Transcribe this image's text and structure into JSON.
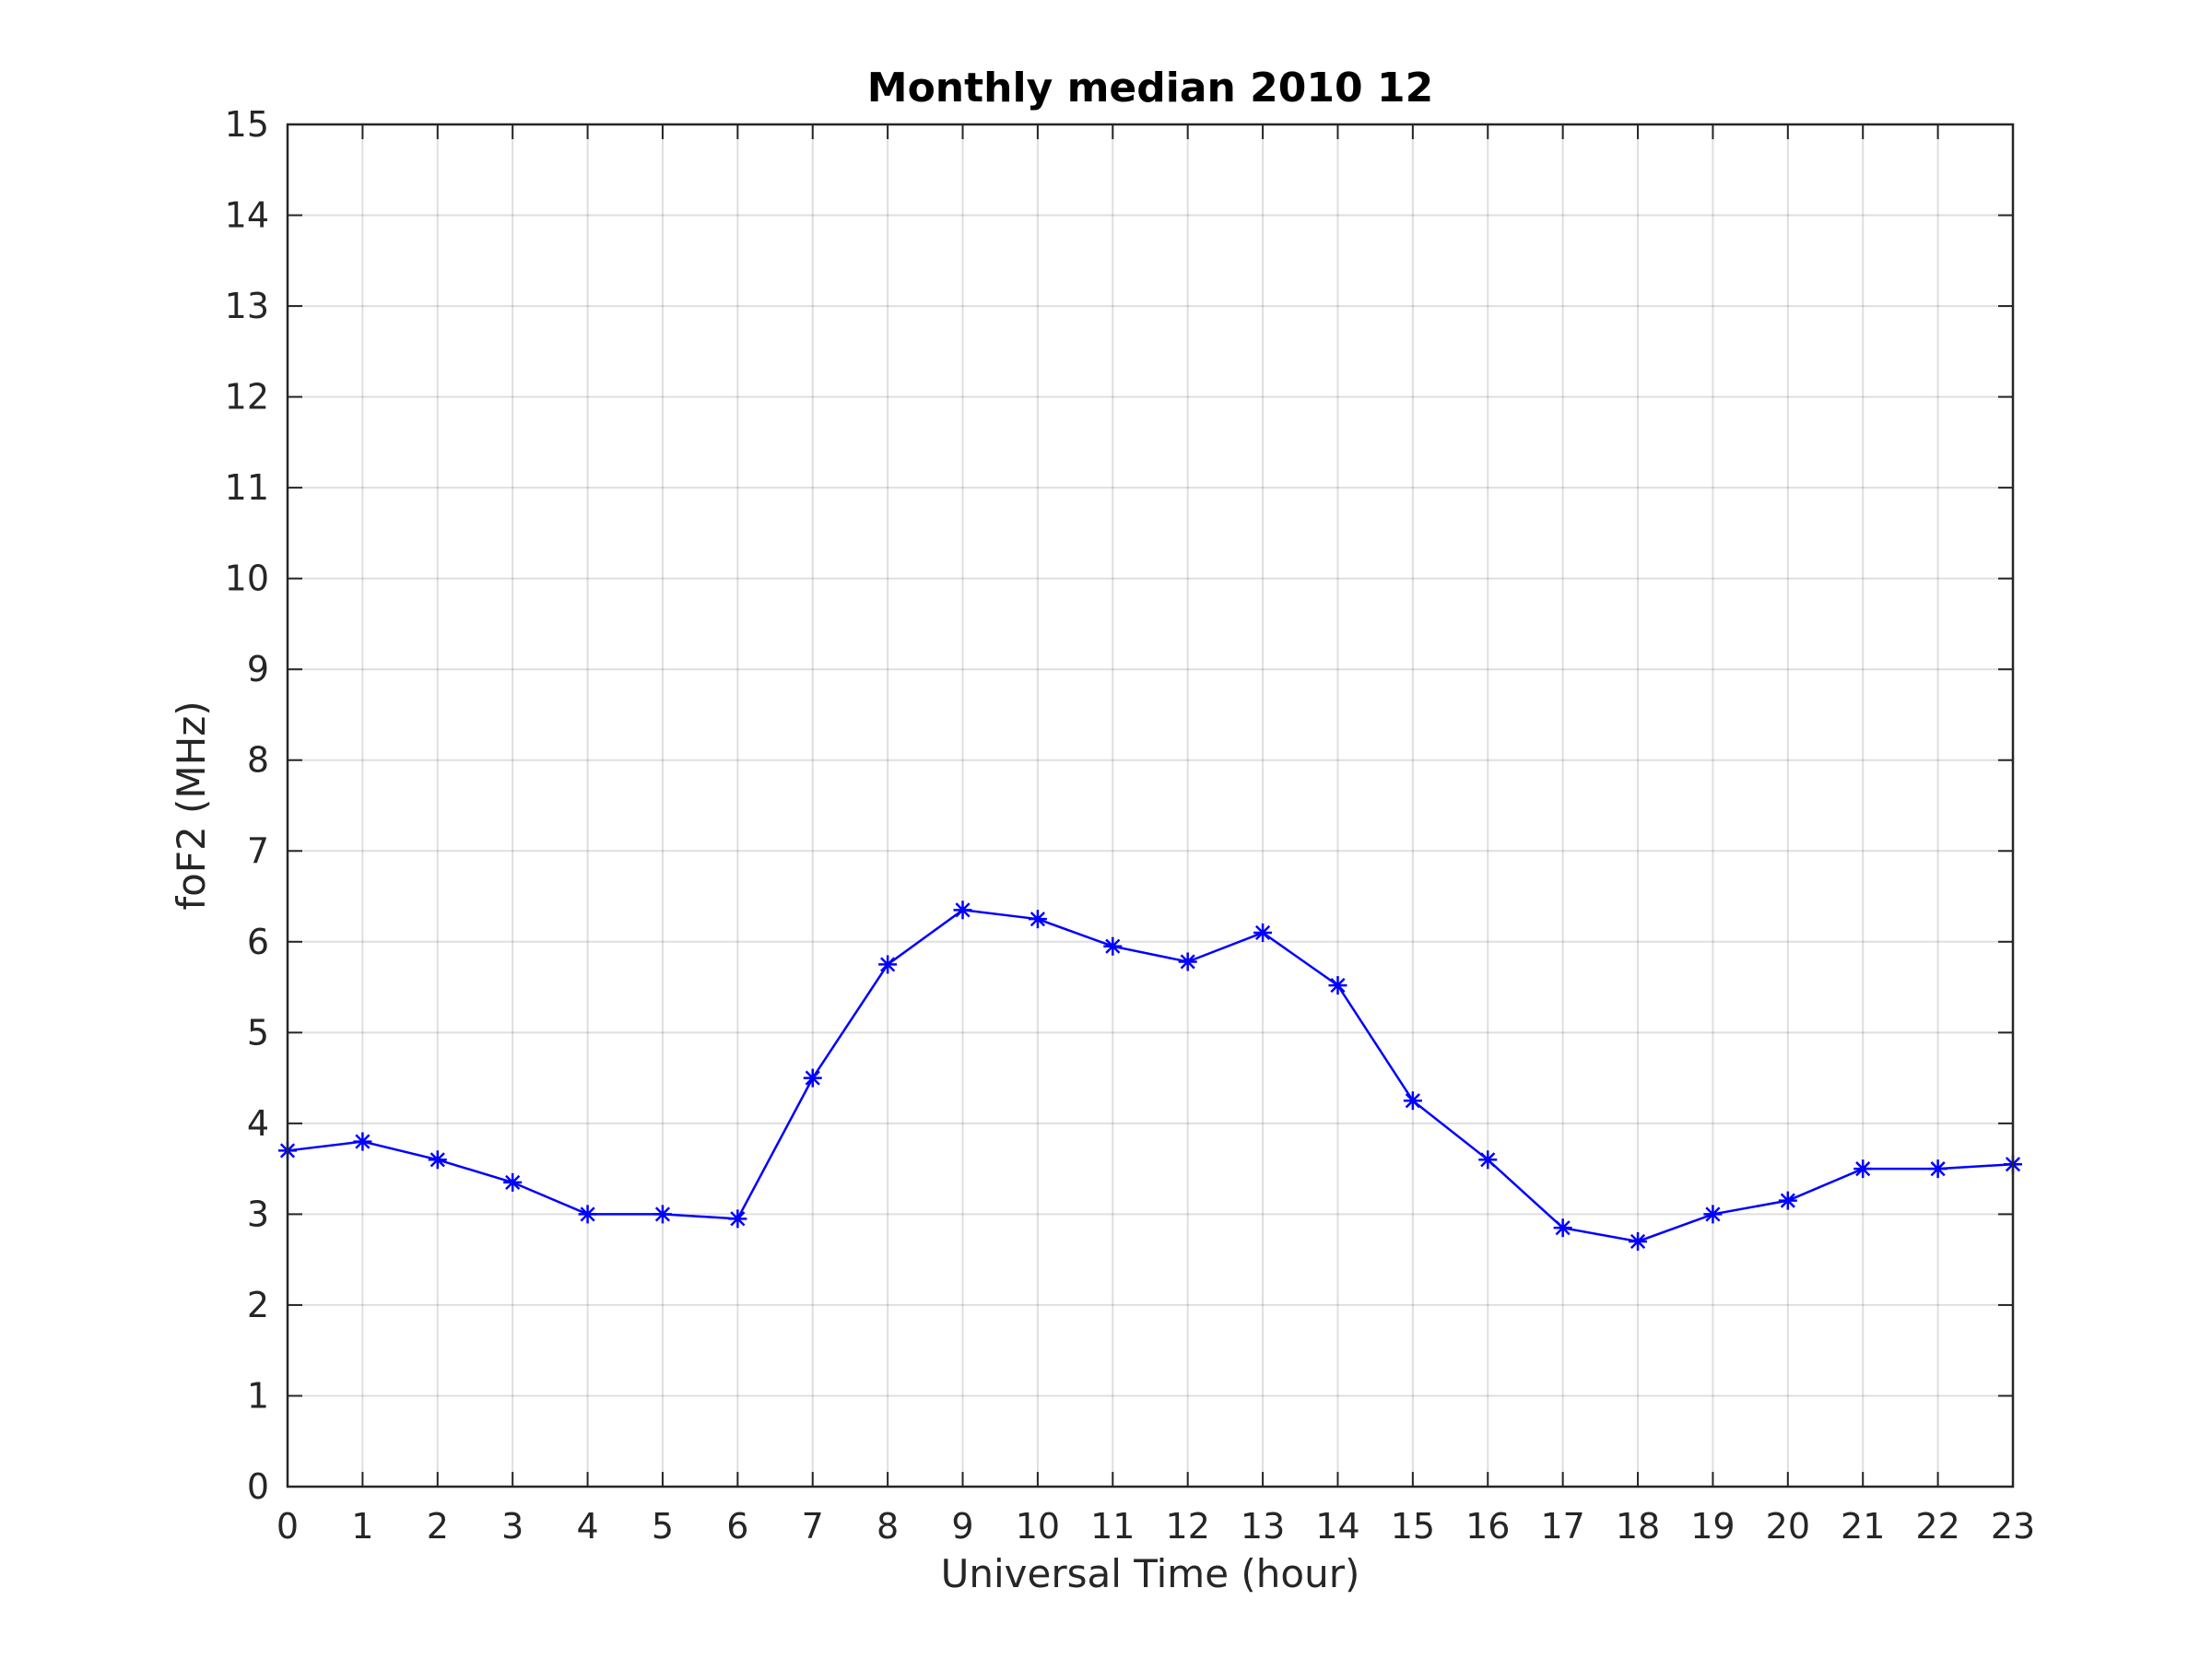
{
  "chart_data": {
    "type": "line",
    "title": "Monthly median 2010 12",
    "xlabel": "Universal Time (hour)",
    "ylabel": "foF2 (MHz)",
    "xlim": [
      0,
      23
    ],
    "ylim": [
      0,
      15
    ],
    "xticks": [
      0,
      1,
      2,
      3,
      4,
      5,
      6,
      7,
      8,
      9,
      10,
      11,
      12,
      13,
      14,
      15,
      16,
      17,
      18,
      19,
      20,
      21,
      22,
      23
    ],
    "yticks": [
      0,
      1,
      2,
      3,
      4,
      5,
      6,
      7,
      8,
      9,
      10,
      11,
      12,
      13,
      14,
      15
    ],
    "grid": true,
    "series": [
      {
        "color": "#0000ff",
        "marker": "asterisk",
        "x": [
          0,
          1,
          2,
          3,
          4,
          5,
          6,
          7,
          8,
          9,
          10,
          11,
          12,
          13,
          14,
          15,
          16,
          17,
          18,
          19,
          20,
          21,
          22,
          23
        ],
        "y": [
          3.7,
          3.8,
          3.6,
          3.35,
          3.0,
          3.0,
          2.95,
          4.5,
          5.75,
          6.35,
          6.25,
          5.95,
          5.78,
          6.1,
          5.52,
          4.25,
          3.6,
          2.85,
          2.7,
          3.0,
          3.15,
          3.5,
          3.5,
          3.55
        ]
      }
    ]
  }
}
